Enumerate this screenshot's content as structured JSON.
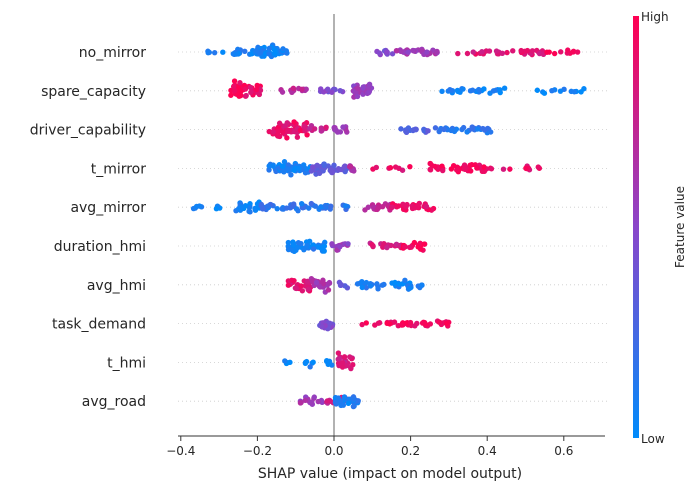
{
  "chart_data": {
    "type": "scatter",
    "subtype": "shap-beeswarm",
    "title": "",
    "xlabel": "SHAP value (impact on model output)",
    "ylabel": "",
    "xlim": [
      -0.42,
      0.72
    ],
    "xticks": [
      -0.4,
      -0.2,
      0.0,
      0.2,
      0.4,
      0.6
    ],
    "xtick_labels": [
      "−0.4",
      "−0.2",
      "0.0",
      "0.2",
      "0.4",
      "0.6"
    ],
    "grid": false,
    "zero_line": true,
    "colorbar": {
      "label": "Feature value",
      "high_label": "High",
      "low_label": "Low",
      "low_color": "#008bfb",
      "high_color": "#ff0052"
    },
    "features": [
      {
        "name": "no_mirror",
        "segments": [
          {
            "min": -0.33,
            "max": -0.29,
            "n": 5,
            "fv": 0.05
          },
          {
            "min": -0.27,
            "max": -0.21,
            "n": 14,
            "fv": 0.08
          },
          {
            "min": -0.21,
            "max": -0.12,
            "n": 45,
            "fv": 0.06
          },
          {
            "min": 0.11,
            "max": 0.16,
            "n": 10,
            "fv": 0.45
          },
          {
            "min": 0.16,
            "max": 0.27,
            "n": 30,
            "fv": 0.58
          },
          {
            "min": 0.32,
            "max": 0.55,
            "n": 30,
            "fv": 0.85
          },
          {
            "min": 0.55,
            "max": 0.65,
            "n": 10,
            "fv": 0.95
          }
        ]
      },
      {
        "name": "spare_capacity",
        "segments": [
          {
            "min": -0.27,
            "max": -0.23,
            "n": 32,
            "fv": 0.95
          },
          {
            "min": -0.23,
            "max": -0.19,
            "n": 16,
            "fv": 0.92
          },
          {
            "min": -0.14,
            "max": -0.07,
            "n": 12,
            "fv": 0.72
          },
          {
            "min": -0.04,
            "max": 0.04,
            "n": 12,
            "fv": 0.45
          },
          {
            "min": 0.05,
            "max": 0.1,
            "n": 30,
            "fv": 0.55
          },
          {
            "min": 0.28,
            "max": 0.45,
            "n": 25,
            "fv": 0.07
          },
          {
            "min": 0.53,
            "max": 0.66,
            "n": 12,
            "fv": 0.04
          }
        ]
      },
      {
        "name": "driver_capability",
        "segments": [
          {
            "min": -0.17,
            "max": -0.07,
            "n": 60,
            "fv": 0.9
          },
          {
            "min": -0.07,
            "max": -0.02,
            "n": 12,
            "fv": 0.78
          },
          {
            "min": -0.01,
            "max": 0.04,
            "n": 12,
            "fv": 0.62
          },
          {
            "min": 0.16,
            "max": 0.25,
            "n": 18,
            "fv": 0.3
          },
          {
            "min": 0.25,
            "max": 0.41,
            "n": 30,
            "fv": 0.15
          }
        ]
      },
      {
        "name": "t_mirror",
        "segments": [
          {
            "min": -0.17,
            "max": -0.06,
            "n": 50,
            "fv": 0.08
          },
          {
            "min": -0.06,
            "max": 0.04,
            "n": 40,
            "fv": 0.35
          },
          {
            "min": 0.04,
            "max": 0.06,
            "n": 8,
            "fv": 0.65
          },
          {
            "min": 0.08,
            "max": 0.2,
            "n": 8,
            "fv": 0.9
          },
          {
            "min": 0.25,
            "max": 0.4,
            "n": 40,
            "fv": 0.95
          },
          {
            "min": 0.4,
            "max": 0.55,
            "n": 12,
            "fv": 0.9
          }
        ]
      },
      {
        "name": "avg_mirror",
        "segments": [
          {
            "min": -0.37,
            "max": -0.26,
            "n": 10,
            "fv": 0.04
          },
          {
            "min": -0.26,
            "max": -0.19,
            "n": 25,
            "fv": 0.08
          },
          {
            "min": -0.19,
            "max": 0.04,
            "n": 50,
            "fv": 0.15
          },
          {
            "min": 0.08,
            "max": 0.15,
            "n": 18,
            "fv": 0.7
          },
          {
            "min": 0.15,
            "max": 0.26,
            "n": 30,
            "fv": 0.9
          }
        ]
      },
      {
        "name": "duration_hmi",
        "segments": [
          {
            "min": -0.12,
            "max": -0.02,
            "n": 45,
            "fv": 0.07
          },
          {
            "min": -0.02,
            "max": 0.04,
            "n": 14,
            "fv": 0.55
          },
          {
            "min": 0.07,
            "max": 0.18,
            "n": 16,
            "fv": 0.82
          },
          {
            "min": 0.18,
            "max": 0.24,
            "n": 20,
            "fv": 0.97
          }
        ]
      },
      {
        "name": "avg_hmi",
        "segments": [
          {
            "min": -0.12,
            "max": -0.06,
            "n": 28,
            "fv": 0.88
          },
          {
            "min": -0.06,
            "max": -0.01,
            "n": 25,
            "fv": 0.62
          },
          {
            "min": 0.01,
            "max": 0.04,
            "n": 6,
            "fv": 0.35
          },
          {
            "min": 0.06,
            "max": 0.15,
            "n": 18,
            "fv": 0.1
          },
          {
            "min": 0.15,
            "max": 0.23,
            "n": 25,
            "fv": 0.05
          }
        ]
      },
      {
        "name": "task_demand",
        "segments": [
          {
            "min": -0.04,
            "max": 0.0,
            "n": 22,
            "fv": 0.45
          },
          {
            "min": 0.07,
            "max": 0.3,
            "n": 40,
            "fv": 0.95
          }
        ]
      },
      {
        "name": "t_hmi",
        "segments": [
          {
            "min": -0.13,
            "max": -0.11,
            "n": 4,
            "fv": 0.04
          },
          {
            "min": -0.08,
            "max": -0.05,
            "n": 7,
            "fv": 0.06
          },
          {
            "min": -0.02,
            "max": 0.0,
            "n": 5,
            "fv": 0.07
          },
          {
            "min": 0.01,
            "max": 0.05,
            "n": 25,
            "fv": 0.8
          }
        ]
      },
      {
        "name": "avg_road",
        "segments": [
          {
            "min": -0.09,
            "max": -0.03,
            "n": 15,
            "fv": 0.6
          },
          {
            "min": -0.03,
            "max": 0.03,
            "n": 15,
            "fv": 0.78
          },
          {
            "min": 0.0,
            "max": 0.07,
            "n": 35,
            "fv": 0.08
          }
        ]
      }
    ]
  }
}
